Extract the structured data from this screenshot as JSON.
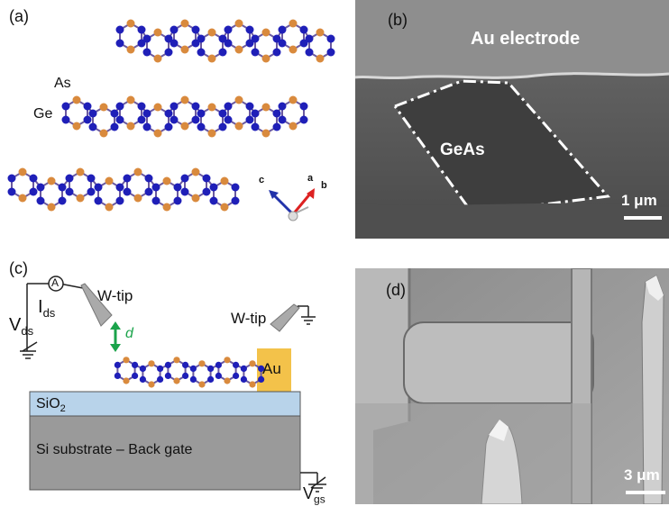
{
  "panel_a": {
    "label": "(a)",
    "atom_labels": {
      "as": "As",
      "ge": "Ge"
    },
    "axes": {
      "c": "c",
      "a": "a",
      "b": "b"
    },
    "colors": {
      "ge": "#1f1fb8",
      "as": "#d98a3d"
    }
  },
  "panel_b": {
    "label": "(b)",
    "electrode_label": "Au electrode",
    "flake_label": "GeAs",
    "scale_label": "1 μm"
  },
  "panel_c": {
    "label": "(c)",
    "ammeter": "A",
    "ids": "I",
    "ids_sub": "ds",
    "vds": "V",
    "vds_sub": "ds",
    "wtip_left": "W-tip",
    "wtip_right": "W-tip",
    "distance": "d",
    "au": "Au",
    "sio2": "SiO",
    "sio2_sub": "2",
    "substrate": "Si substrate – Back gate",
    "vgs": "V",
    "vgs_sub": "gs",
    "colors": {
      "sio2": "#b8d3ea",
      "substrate": "#9a9a9a",
      "au": "#f3c24a",
      "distance": "#1aa34a"
    }
  },
  "panel_d": {
    "label": "(d)",
    "scale_label": "3 μm"
  }
}
